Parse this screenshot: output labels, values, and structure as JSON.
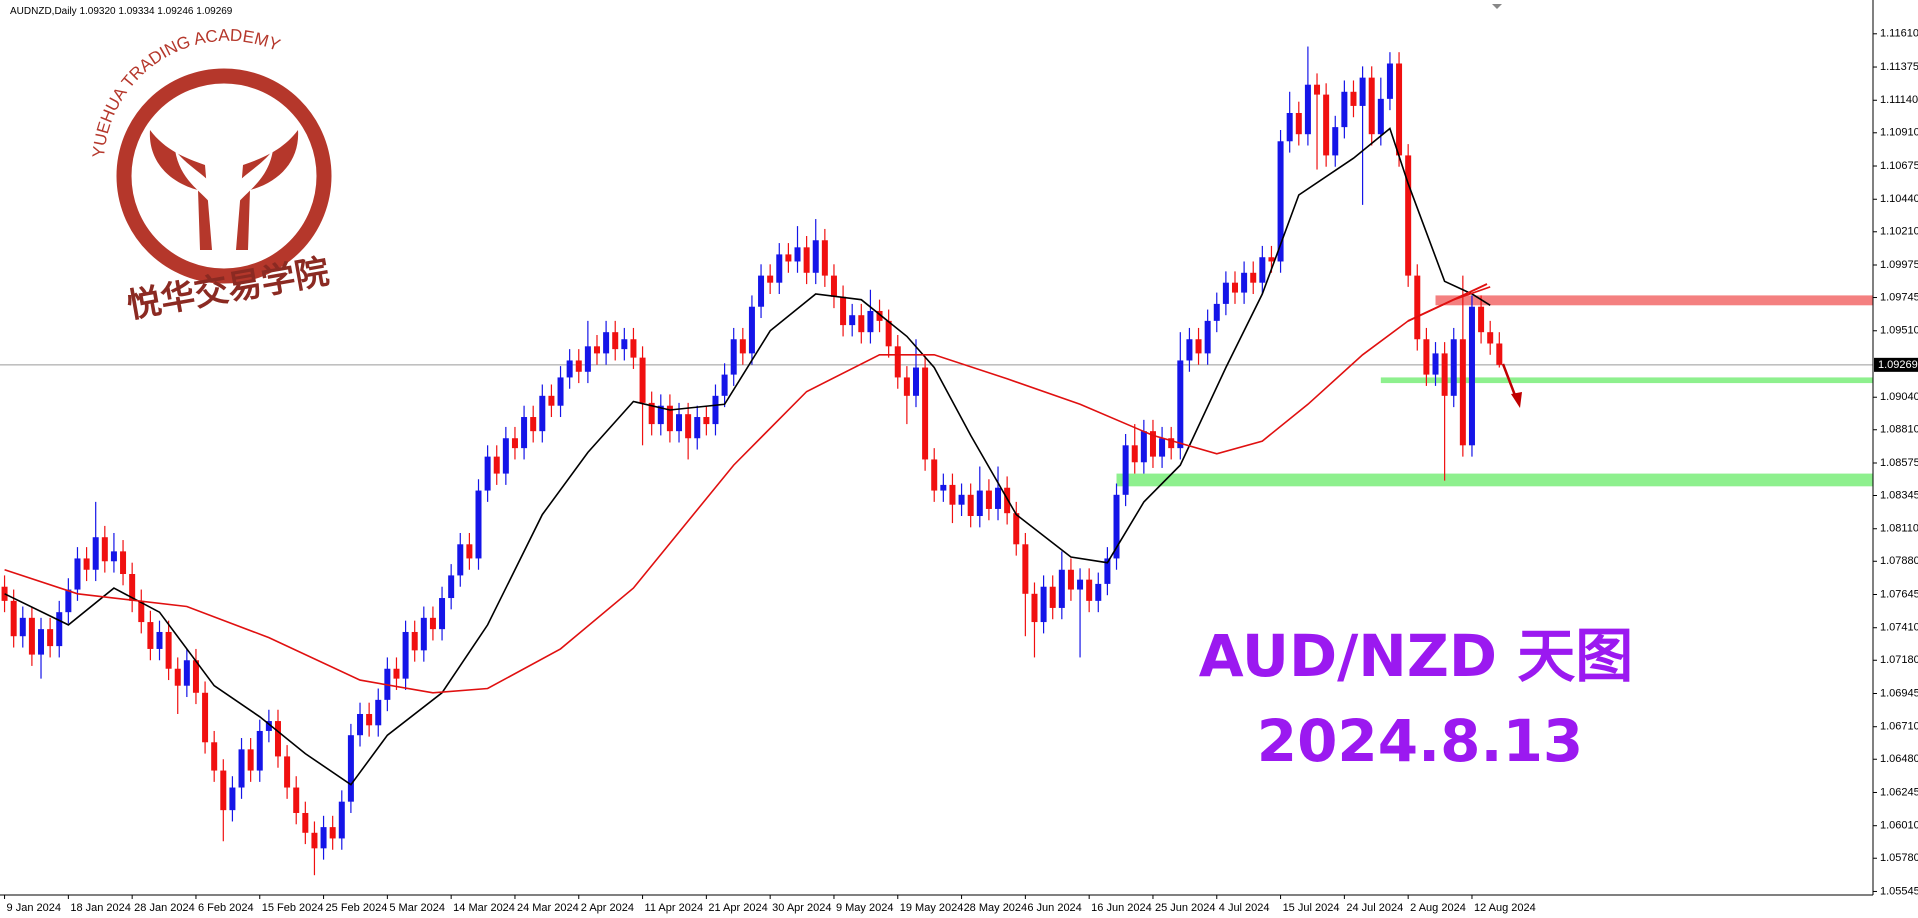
{
  "chart_data": {
    "type": "candlestick",
    "header": "AUDNZD,Daily  1.09320 1.09334 1.09246 1.09269",
    "logo_text": "YUEHUA TRADING ACADEMY",
    "logo_text_cn": "悦华交易学院",
    "annotation_title": "AUD/NZD 天图",
    "annotation_date": "2024.8.13",
    "up_color": "#1515e8",
    "down_color": "#f01010",
    "open": [
      1.077,
      1.076,
      1.0735,
      1.0748,
      1.0722,
      1.074,
      1.0728,
      1.0752,
      1.0768,
      1.079,
      1.0782,
      1.0805,
      1.0788,
      1.0795,
      1.0779,
      1.076,
      1.0745,
      1.0726,
      1.0738,
      1.0712,
      1.07,
      1.0718,
      1.0695,
      1.066,
      1.064,
      1.0612,
      1.0628,
      1.0655,
      1.064,
      1.0668,
      1.0675,
      1.065,
      1.0628,
      1.061,
      1.0596,
      1.0585,
      1.06,
      1.0592,
      1.0618,
      1.0665,
      1.068,
      1.0672,
      1.069,
      1.0712,
      1.0705,
      1.0738,
      1.0725,
      1.0748,
      1.074,
      1.0762,
      1.0778,
      1.08,
      1.079,
      1.0838,
      1.0862,
      1.085,
      1.0875,
      1.0868,
      1.089,
      1.088,
      1.0905,
      1.0898,
      1.0918,
      1.093,
      1.0922,
      1.094,
      1.0935,
      1.095,
      1.0938,
      1.0945,
      1.0932,
      1.09,
      1.0885,
      1.0898,
      1.088,
      1.0892,
      1.0875,
      1.089,
      1.0885,
      1.0905,
      1.092,
      1.0945,
      1.0935,
      1.0968,
      1.099,
      1.0985,
      1.1005,
      1.1,
      1.101,
      1.0992,
      1.1015,
      1.099,
      1.0975,
      1.0955,
      1.0962,
      1.095,
      1.0965,
      1.0958,
      1.094,
      1.0918,
      1.0905,
      1.0925,
      1.086,
      1.0838,
      1.0842,
      1.0828,
      1.0835,
      1.082,
      1.0838,
      1.0825,
      1.084,
      1.0822,
      1.08,
      1.0765,
      1.0745,
      1.077,
      1.0755,
      1.0782,
      1.0768,
      1.0775,
      1.076,
      1.0772,
      1.079,
      1.0835,
      1.087,
      1.0858,
      1.088,
      1.0862,
      1.0875,
      1.0868,
      1.093,
      1.0945,
      1.0935,
      1.0958,
      1.097,
      1.0985,
      1.0978,
      1.0992,
      1.0985,
      1.1003,
      1.1,
      1.1085,
      1.1105,
      1.109,
      1.1125,
      1.1118,
      1.1075,
      1.1095,
      1.112,
      1.111,
      1.113,
      1.109,
      1.1115,
      1.114,
      1.1075,
      1.099,
      1.0945,
      1.092,
      1.0935,
      1.0905,
      1.0945,
      1.087,
      1.0968,
      1.095,
      1.0942
    ],
    "high": [
      1.0778,
      1.0768,
      1.0756,
      1.0756,
      1.0748,
      1.0748,
      1.076,
      1.0776,
      1.0798,
      1.0798,
      1.083,
      1.0813,
      1.0808,
      1.0803,
      1.0787,
      1.0768,
      1.0753,
      1.0746,
      1.0746,
      1.072,
      1.0726,
      1.0726,
      1.0703,
      1.0668,
      1.0648,
      1.0636,
      1.0663,
      1.0663,
      1.0676,
      1.0683,
      1.0683,
      1.0658,
      1.0636,
      1.0618,
      1.0604,
      1.0608,
      1.0608,
      1.0626,
      1.0673,
      1.0688,
      1.0688,
      1.0698,
      1.072,
      1.072,
      1.0746,
      1.0746,
      1.0756,
      1.0756,
      1.077,
      1.0786,
      1.0808,
      1.0808,
      1.0846,
      1.087,
      1.087,
      1.0883,
      1.0883,
      1.0898,
      1.0898,
      1.0913,
      1.0913,
      1.0926,
      1.0938,
      1.0938,
      1.0958,
      1.0948,
      1.0958,
      1.0958,
      1.0953,
      1.0953,
      1.094,
      1.0908,
      1.0906,
      1.0906,
      1.09,
      1.09,
      1.0898,
      1.0898,
      1.0913,
      1.0928,
      1.0953,
      1.0953,
      1.0976,
      1.0998,
      1.0998,
      1.1013,
      1.1013,
      1.1025,
      1.1018,
      1.103,
      1.1023,
      1.0998,
      1.0983,
      1.097,
      1.097,
      1.098,
      1.0973,
      1.0966,
      1.0948,
      1.0926,
      1.0945,
      1.0933,
      1.0868,
      1.085,
      1.085,
      1.0843,
      1.0843,
      1.0855,
      1.0846,
      1.0855,
      1.0848,
      1.083,
      1.0808,
      1.0773,
      1.0778,
      1.0778,
      1.0795,
      1.079,
      1.0783,
      1.0783,
      1.078,
      1.0798,
      1.0843,
      1.0878,
      1.0885,
      1.0888,
      1.0888,
      1.0883,
      1.0883,
      1.095,
      1.0953,
      1.0953,
      1.0966,
      1.0978,
      1.0993,
      1.0993,
      1.1,
      1.1,
      1.1011,
      1.1011,
      1.1093,
      1.112,
      1.1113,
      1.1152,
      1.1133,
      1.1126,
      1.1103,
      1.1128,
      1.1128,
      1.1138,
      1.1138,
      1.113,
      1.1148,
      1.1148,
      1.1083,
      1.0998,
      1.0953,
      1.0943,
      1.0943,
      1.0953,
      1.099,
      1.0976,
      1.0976,
      1.0958,
      1.095
    ],
    "low": [
      1.0752,
      1.0727,
      1.0727,
      1.0714,
      1.0705,
      1.072,
      1.072,
      1.0744,
      1.076,
      1.0774,
      1.0774,
      1.078,
      1.078,
      1.0771,
      1.0752,
      1.0737,
      1.0718,
      1.0718,
      1.0704,
      1.068,
      1.0692,
      1.0687,
      1.0652,
      1.0632,
      1.059,
      1.0604,
      1.062,
      1.0632,
      1.0632,
      1.066,
      1.0642,
      1.062,
      1.0602,
      1.0588,
      1.0566,
      1.0577,
      1.0584,
      1.0584,
      1.061,
      1.0657,
      1.0664,
      1.0664,
      1.0682,
      1.0697,
      1.0697,
      1.0717,
      1.0717,
      1.0732,
      1.0732,
      1.0754,
      1.077,
      1.0782,
      1.0782,
      1.083,
      1.0842,
      1.0842,
      1.086,
      1.086,
      1.0872,
      1.0872,
      1.089,
      1.089,
      1.091,
      1.0914,
      1.0914,
      1.0927,
      1.0927,
      1.093,
      1.093,
      1.0924,
      1.087,
      1.0877,
      1.0877,
      1.0872,
      1.0872,
      1.086,
      1.0867,
      1.0877,
      1.0877,
      1.0897,
      1.0912,
      1.0927,
      1.0927,
      1.096,
      1.0977,
      1.0977,
      1.0992,
      1.0992,
      1.0984,
      1.0984,
      1.0982,
      1.0967,
      1.0947,
      1.0947,
      1.0942,
      1.0942,
      1.095,
      1.0932,
      1.091,
      1.0885,
      1.0897,
      1.0852,
      1.083,
      1.083,
      1.0815,
      1.082,
      1.0812,
      1.0812,
      1.0817,
      1.0817,
      1.0814,
      1.0792,
      1.0735,
      1.072,
      1.0737,
      1.0747,
      1.0747,
      1.076,
      1.072,
      1.0752,
      1.0752,
      1.0764,
      1.0782,
      1.0827,
      1.085,
      1.085,
      1.0854,
      1.0854,
      1.086,
      1.086,
      1.0922,
      1.0927,
      1.0927,
      1.095,
      1.0962,
      1.097,
      1.097,
      1.0977,
      1.0977,
      1.0992,
      1.0992,
      1.1077,
      1.1082,
      1.1082,
      1.1065,
      1.1067,
      1.1067,
      1.1087,
      1.1102,
      1.104,
      1.1082,
      1.1082,
      1.1107,
      1.1067,
      1.0982,
      1.0937,
      1.0912,
      1.0912,
      1.0845,
      1.0897,
      1.0862,
      1.0862,
      1.0942,
      1.0934,
      1.0925
    ],
    "close": [
      1.076,
      1.0735,
      1.0748,
      1.0722,
      1.074,
      1.0728,
      1.0752,
      1.0768,
      1.079,
      1.0782,
      1.0805,
      1.0788,
      1.0795,
      1.0779,
      1.076,
      1.0745,
      1.0726,
      1.0738,
      1.0712,
      1.07,
      1.0718,
      1.0695,
      1.066,
      1.064,
      1.0612,
      1.0628,
      1.0655,
      1.064,
      1.0668,
      1.0675,
      1.065,
      1.0628,
      1.061,
      1.0596,
      1.0585,
      1.06,
      1.0592,
      1.0618,
      1.0665,
      1.068,
      1.0672,
      1.069,
      1.0712,
      1.0705,
      1.0738,
      1.0725,
      1.0748,
      1.074,
      1.0762,
      1.0778,
      1.08,
      1.079,
      1.0838,
      1.0862,
      1.085,
      1.0875,
      1.0868,
      1.089,
      1.088,
      1.0905,
      1.0898,
      1.0918,
      1.093,
      1.0922,
      1.094,
      1.0935,
      1.095,
      1.0938,
      1.0945,
      1.0932,
      1.09,
      1.0885,
      1.0898,
      1.088,
      1.0892,
      1.0875,
      1.089,
      1.0885,
      1.0905,
      1.092,
      1.0945,
      1.0935,
      1.0968,
      1.099,
      1.0985,
      1.1005,
      1.1,
      1.101,
      1.0992,
      1.1015,
      1.099,
      1.0975,
      1.0955,
      1.0962,
      1.095,
      1.0965,
      1.0958,
      1.094,
      1.0918,
      1.0905,
      1.0925,
      1.086,
      1.0838,
      1.0842,
      1.0828,
      1.0835,
      1.082,
      1.0838,
      1.0825,
      1.084,
      1.0822,
      1.08,
      1.0765,
      1.0745,
      1.077,
      1.0755,
      1.0782,
      1.0768,
      1.0775,
      1.076,
      1.0772,
      1.079,
      1.0835,
      1.087,
      1.0858,
      1.088,
      1.0862,
      1.0875,
      1.0868,
      1.093,
      1.0945,
      1.0935,
      1.0958,
      1.097,
      1.0985,
      1.0978,
      1.0992,
      1.0985,
      1.1003,
      1.1,
      1.1085,
      1.1105,
      1.109,
      1.1125,
      1.1118,
      1.1075,
      1.1095,
      1.112,
      1.111,
      1.113,
      1.109,
      1.1115,
      1.114,
      1.1075,
      1.099,
      1.0945,
      1.092,
      1.0935,
      1.0905,
      1.0945,
      1.087,
      1.0968,
      1.095,
      1.0942,
      1.09269
    ],
    "lines": [
      {
        "color": "#000000",
        "x": [
          0,
          7,
          12,
          17,
          23,
          28,
          33,
          38,
          42,
          48,
          53,
          59,
          64,
          69,
          73,
          79,
          84,
          89,
          94,
          99,
          102,
          106,
          111,
          117,
          121,
          125,
          129,
          134,
          138,
          142,
          148,
          152,
          154,
          158,
          161,
          163
        ],
        "values": [
          1.0765,
          1.0743,
          1.0769,
          1.0752,
          1.07,
          1.0678,
          1.0652,
          1.063,
          1.0665,
          1.0695,
          1.0743,
          1.0821,
          1.0865,
          1.0901,
          1.0895,
          1.0899,
          1.0951,
          1.0977,
          1.0973,
          1.0947,
          1.0925,
          1.0877,
          1.0821,
          1.0791,
          1.0787,
          1.083,
          1.0856,
          1.0925,
          1.0977,
          1.1047,
          1.1073,
          1.1094,
          1.1055,
          1.0986,
          1.0977,
          1.0969
        ]
      },
      {
        "color": "#e01010",
        "x": [
          0,
          8,
          20,
          29,
          39,
          47,
          53,
          61,
          69,
          80,
          88,
          96,
          102,
          110,
          118,
          126,
          133,
          138,
          143,
          149,
          154,
          159,
          163
        ],
        "values": [
          1.0782,
          1.0765,
          1.0756,
          1.0734,
          1.0704,
          1.0695,
          1.0698,
          1.0726,
          1.0769,
          1.0856,
          1.0908,
          1.0934,
          1.0934,
          1.0917,
          1.0899,
          1.0877,
          1.0864,
          1.0873,
          1.0899,
          1.0934,
          1.0958,
          1.0973,
          1.0982
        ]
      }
    ],
    "zones": [
      {
        "from": 157,
        "low": 1.0969,
        "high": 1.0976,
        "color": "#f48080"
      },
      {
        "from": 151,
        "low": 1.0914,
        "high": 1.0918,
        "color": "#8ef08e"
      },
      {
        "from": 122,
        "low": 1.0841,
        "high": 1.085,
        "color": "#8ef08e"
      }
    ],
    "last_price": 1.09269,
    "xlim": [
      -0.5,
      205
    ],
    "ylim": [
      1.0552,
      1.1175
    ],
    "yticks": [
      {
        "value": 1.1161,
        "label": "1.11610"
      },
      1.11375,
      {
        "value": 1.1114,
        "label": "1.11140"
      },
      {
        "value": 1.1091,
        "label": "1.10910"
      },
      1.10675,
      {
        "value": 1.1044,
        "label": "1.10440"
      },
      {
        "value": 1.1021,
        "label": "1.10210"
      },
      1.09975,
      1.09745,
      {
        "value": 1.0951,
        "label": "1.09510"
      },
      {
        "value": 1.0904,
        "label": "1.09040"
      },
      {
        "value": 1.0881,
        "label": "1.08810"
      },
      1.08575,
      1.08345,
      {
        "value": 1.0811,
        "label": "1.08110"
      },
      {
        "value": 1.0788,
        "label": "1.07880"
      },
      1.07645,
      {
        "value": 1.0741,
        "label": "1.07410"
      },
      {
        "value": 1.0718,
        "label": "1.07180"
      },
      1.06945,
      {
        "value": 1.0671,
        "label": "1.06710"
      },
      {
        "value": 1.0648,
        "label": "1.06480"
      },
      1.06245,
      {
        "value": 1.0601,
        "label": "1.06010"
      },
      {
        "value": 1.0578,
        "label": "1.05780"
      },
      1.05545
    ],
    "xticks": [
      {
        "value": 0,
        "label": "9 Jan 2024"
      },
      {
        "value": 7,
        "label": "18 Jan 2024"
      },
      {
        "value": 14,
        "label": "28 Jan 2024"
      },
      {
        "value": 21,
        "label": "6 Feb 2024"
      },
      {
        "value": 28,
        "label": "15 Feb 2024"
      },
      {
        "value": 35,
        "label": "25 Feb 2024"
      },
      {
        "value": 42,
        "label": "5 Mar 2024"
      },
      {
        "value": 49,
        "label": "14 Mar 2024"
      },
      {
        "value": 56,
        "label": "24 Mar 2024"
      },
      {
        "value": 63,
        "label": "2 Apr 2024"
      },
      {
        "value": 70,
        "label": "11 Apr 2024"
      },
      {
        "value": 77,
        "label": "21 Apr 2024"
      },
      {
        "value": 84,
        "label": "30 Apr 2024"
      },
      {
        "value": 91,
        "label": "9 May 2024"
      },
      {
        "value": 98,
        "label": "19 May 2024"
      },
      {
        "value": 105,
        "label": "28 May 2024"
      },
      {
        "value": 112,
        "label": "6 Jun 2024"
      },
      {
        "value": 119,
        "label": "16 Jun 2024"
      },
      {
        "value": 126,
        "label": "25 Jun 2024"
      },
      {
        "value": 133,
        "label": "4 Jul 2024"
      },
      {
        "value": 140,
        "label": "15 Jul 2024"
      },
      {
        "value": 147,
        "label": "24 Jul 2024"
      },
      {
        "value": 154,
        "label": "2 Aug 2024"
      },
      {
        "value": 161,
        "label": "12 Aug 2024"
      }
    ]
  }
}
